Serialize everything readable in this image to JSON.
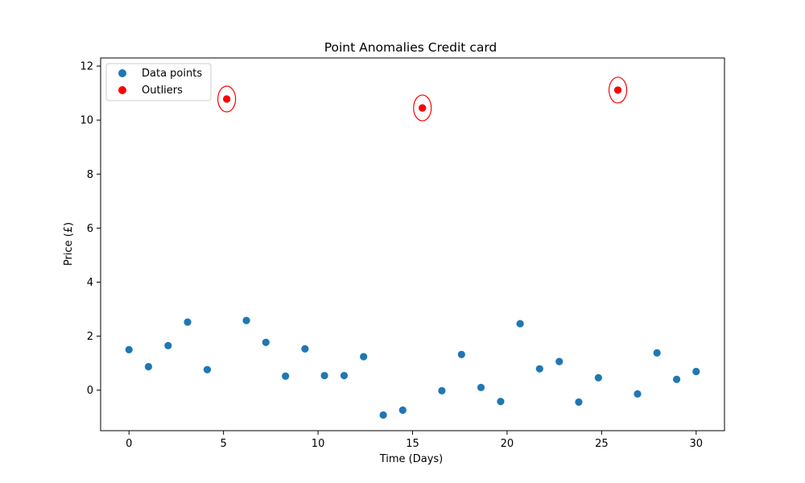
{
  "chart_data": {
    "type": "scatter",
    "title": "Point Anomalies Credit card",
    "xlabel": "Time (Days)",
    "ylabel": "Price (£)",
    "xlim": [
      -1.5,
      31.5
    ],
    "ylim": [
      -1.5,
      12.3
    ],
    "xticks": [
      0,
      5,
      10,
      15,
      20,
      25,
      30
    ],
    "yticks": [
      0,
      2,
      4,
      6,
      8,
      10,
      12
    ],
    "xtick_labels": [
      "0",
      "5",
      "10",
      "15",
      "20",
      "25",
      "30"
    ],
    "ytick_labels": [
      "0",
      "2",
      "4",
      "6",
      "8",
      "10",
      "12"
    ],
    "grid": false,
    "legend_position": "top-left",
    "series": [
      {
        "name": "Data points",
        "color": "#1f77b4",
        "x": [
          0,
          1.03,
          2.07,
          3.1,
          4.14,
          5.17,
          6.21,
          7.24,
          8.28,
          9.31,
          10.34,
          11.38,
          12.41,
          13.45,
          14.48,
          15.52,
          16.55,
          17.59,
          18.62,
          19.66,
          20.69,
          21.72,
          22.76,
          23.79,
          24.83,
          25.86,
          26.9,
          27.93,
          28.97,
          30
        ],
        "y": [
          1.5,
          0.87,
          1.65,
          2.52,
          0.76,
          10.78,
          2.58,
          1.77,
          0.52,
          1.53,
          0.54,
          0.54,
          1.24,
          -0.92,
          -0.74,
          10.45,
          -0.02,
          1.32,
          0.1,
          -0.42,
          2.46,
          0.79,
          1.06,
          -0.44,
          0.46,
          11.11,
          -0.14,
          1.38,
          0.4,
          0.69
        ]
      },
      {
        "name": "Outliers",
        "color": "#ff0000",
        "x": [
          5.17,
          15.52,
          25.86
        ],
        "y": [
          10.78,
          10.45,
          11.11
        ]
      }
    ],
    "annotations": [
      {
        "type": "circle",
        "x": 5.17,
        "y": 10.78,
        "color": "#ff0000"
      },
      {
        "type": "circle",
        "x": 15.52,
        "y": 10.45,
        "color": "#ff0000"
      },
      {
        "type": "circle",
        "x": 25.86,
        "y": 11.11,
        "color": "#ff0000"
      }
    ]
  }
}
